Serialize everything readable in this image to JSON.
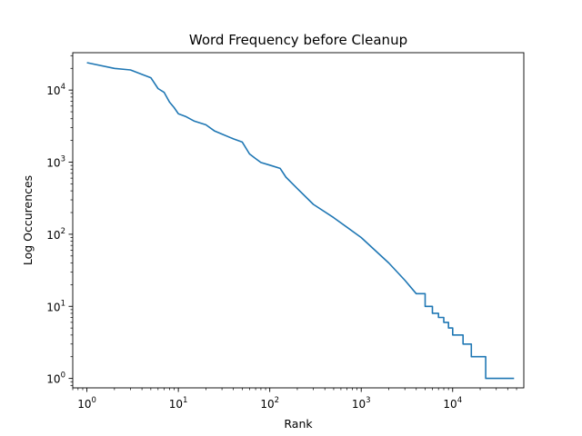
{
  "chart_data": {
    "type": "line",
    "title": "Word Frequency before Cleanup",
    "xlabel": "Rank",
    "ylabel": "Log Occurences",
    "xscale": "log",
    "yscale": "log",
    "xlim": [
      0.7,
      60000
    ],
    "ylim": [
      0.74,
      33000
    ],
    "x_ticks": [
      {
        "value": 1,
        "base": "10",
        "exp": "0"
      },
      {
        "value": 10,
        "base": "10",
        "exp": "1"
      },
      {
        "value": 100,
        "base": "10",
        "exp": "2"
      },
      {
        "value": 1000,
        "base": "10",
        "exp": "3"
      },
      {
        "value": 10000,
        "base": "10",
        "exp": "4"
      }
    ],
    "y_ticks": [
      {
        "value": 1,
        "base": "10",
        "exp": "0"
      },
      {
        "value": 10,
        "base": "10",
        "exp": "1"
      },
      {
        "value": 100,
        "base": "10",
        "exp": "2"
      },
      {
        "value": 1000,
        "base": "10",
        "exp": "3"
      },
      {
        "value": 10000,
        "base": "10",
        "exp": "4"
      }
    ],
    "grid": false,
    "legend": "none",
    "line_color": "#1f77b4",
    "series": [
      {
        "step": "post",
        "x": [
          1,
          2,
          3,
          4,
          5,
          6,
          7,
          8,
          9,
          10,
          12,
          15,
          20,
          25,
          30,
          40,
          50,
          60,
          70,
          80,
          100,
          130,
          150,
          170,
          200,
          300,
          500,
          1000,
          2000,
          3000,
          4000,
          5000,
          6000,
          7000,
          8000,
          9000,
          10000,
          11000,
          13000,
          16000,
          23000,
          47000
        ],
        "y": [
          24000,
          20000,
          19000,
          16500,
          14800,
          10500,
          9300,
          6800,
          5700,
          4700,
          4300,
          3700,
          3300,
          2700,
          2450,
          2100,
          1900,
          1300,
          1120,
          990,
          910,
          820,
          620,
          530,
          430,
          260,
          170,
          90,
          40,
          23,
          15,
          10,
          8,
          7,
          6,
          5,
          4,
          4,
          3,
          2,
          1,
          1
        ]
      }
    ]
  }
}
